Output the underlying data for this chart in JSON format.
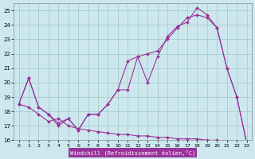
{
  "background_color": "#cce8ee",
  "grid_color": "#aacccc",
  "line_color": "#993399",
  "title": "Windchill (Refroidissement éolien,°C)",
  "xlim": [
    -0.5,
    23.5
  ],
  "ylim": [
    16,
    25.5
  ],
  "xticks": [
    0,
    1,
    2,
    3,
    4,
    5,
    6,
    7,
    8,
    9,
    10,
    11,
    12,
    13,
    14,
    15,
    16,
    17,
    18,
    19,
    20,
    21,
    22,
    23
  ],
  "yticks": [
    16,
    17,
    18,
    19,
    20,
    21,
    22,
    23,
    24,
    25
  ],
  "series1_x": [
    0,
    1,
    2,
    3,
    4,
    5,
    6,
    7,
    8,
    9,
    10,
    11,
    12,
    13,
    14,
    15,
    16,
    17,
    18,
    19,
    20,
    21,
    22,
    23
  ],
  "series1_y": [
    18.5,
    20.3,
    18.3,
    17.8,
    17.0,
    17.5,
    16.7,
    17.8,
    17.8,
    18.5,
    19.5,
    19.5,
    21.8,
    20.0,
    21.8,
    23.2,
    23.9,
    24.2,
    25.2,
    24.7,
    23.8,
    21.0,
    19.0,
    15.8
  ],
  "series2_x": [
    0,
    1,
    2,
    3,
    4,
    5,
    6,
    7,
    8,
    9,
    10,
    11,
    12,
    13,
    14,
    15,
    16,
    17,
    18,
    19,
    20,
    21,
    22,
    23
  ],
  "series2_y": [
    18.5,
    20.3,
    18.3,
    17.8,
    17.2,
    17.5,
    16.7,
    17.8,
    17.8,
    18.5,
    19.5,
    21.5,
    21.8,
    22.0,
    22.2,
    23.0,
    23.8,
    24.5,
    24.7,
    24.5,
    23.8,
    21.0,
    19.0,
    15.8
  ],
  "series3_x": [
    0,
    1,
    2,
    3,
    4,
    5,
    6,
    7,
    8,
    9,
    10,
    11,
    12,
    13,
    14,
    15,
    16,
    17,
    18,
    19,
    20,
    21,
    22,
    23
  ],
  "series3_y": [
    18.5,
    18.3,
    17.8,
    17.3,
    17.5,
    17.0,
    16.8,
    16.7,
    16.6,
    16.5,
    16.4,
    16.4,
    16.3,
    16.3,
    16.2,
    16.2,
    16.1,
    16.1,
    16.1,
    16.0,
    16.0,
    15.9,
    15.9,
    15.8
  ]
}
